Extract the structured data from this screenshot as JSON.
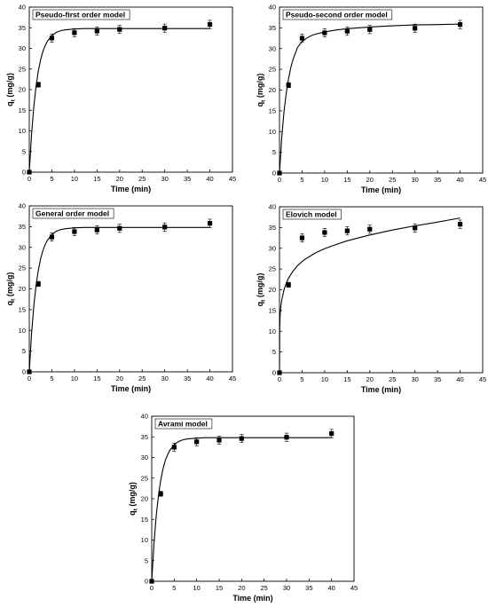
{
  "figure": {
    "chart_data": [
      {
        "type": "scatter",
        "title": "Pseudo-first order model",
        "xlabel": "Time (min)",
        "ylabel": "q",
        "ylabel_sub": "t",
        "ylabel_unit": " (mg/g)",
        "xlim": [
          0,
          45
        ],
        "ylim": [
          0,
          40
        ],
        "xticks": [
          0,
          5,
          10,
          15,
          20,
          25,
          30,
          35,
          40,
          45
        ],
        "yticks": [
          0,
          5,
          10,
          15,
          20,
          25,
          30,
          35,
          40
        ],
        "grid": false,
        "series": [
          {
            "x": [
              0,
              2,
              5,
              10,
              15,
              20,
              30,
              40
            ],
            "y": [
              0,
              21.2,
              32.5,
              33.8,
              34.2,
              34.6,
              34.9,
              35.8
            ],
            "error": [
              0.3,
              0.6,
              1.0,
              1.0,
              1.0,
              1.0,
              1.0,
              1.0
            ]
          }
        ],
        "fit_curve": {
          "x": [
            0,
            0.5,
            1,
            1.5,
            2,
            2.5,
            3,
            3.5,
            4,
            5,
            6,
            7,
            8,
            10,
            12,
            15,
            20,
            25,
            30,
            35,
            40
          ],
          "y": [
            0,
            9.1,
            15.9,
            20.8,
            24.5,
            27.2,
            29.2,
            30.6,
            31.7,
            33.1,
            33.9,
            34.3,
            34.5,
            34.7,
            34.8,
            34.8,
            34.8,
            34.8,
            34.8,
            34.8,
            34.8
          ]
        }
      },
      {
        "type": "scatter",
        "title": "Pseudo-second order model",
        "xlabel": "Time (min)",
        "ylabel": "q",
        "ylabel_sub": "t",
        "ylabel_unit": " (mg/g)",
        "xlim": [
          0,
          45
        ],
        "ylim": [
          0,
          40
        ],
        "xticks": [
          0,
          5,
          10,
          15,
          20,
          25,
          30,
          35,
          40,
          45
        ],
        "yticks": [
          0,
          5,
          10,
          15,
          20,
          25,
          30,
          35,
          40
        ],
        "grid": false,
        "series": [
          {
            "x": [
              0,
              2,
              5,
              10,
              15,
              20,
              30,
              40
            ],
            "y": [
              0,
              21.2,
              32.5,
              33.8,
              34.2,
              34.6,
              34.9,
              35.8
            ],
            "error": [
              0.3,
              0.6,
              1.0,
              1.0,
              1.0,
              1.0,
              1.0,
              1.0
            ]
          }
        ],
        "fit_curve": {
          "x": [
            0,
            0.5,
            1,
            1.5,
            2,
            2.5,
            3,
            4,
            5,
            6,
            7,
            8,
            10,
            12,
            15,
            20,
            25,
            30,
            35,
            40
          ],
          "y": [
            0,
            8.6,
            14.8,
            19.3,
            22.7,
            25.4,
            27.4,
            30.3,
            31.7,
            32.5,
            33.1,
            33.5,
            34.0,
            34.4,
            34.8,
            35.2,
            35.5,
            35.7,
            35.8,
            35.9
          ]
        }
      },
      {
        "type": "scatter",
        "title": "General order model",
        "xlabel": "Time (min)",
        "ylabel": "q",
        "ylabel_sub": "t",
        "ylabel_unit": " (mg/g)",
        "xlim": [
          0,
          45
        ],
        "ylim": [
          0,
          40
        ],
        "xticks": [
          0,
          5,
          10,
          15,
          20,
          25,
          30,
          35,
          40,
          45
        ],
        "yticks": [
          0,
          5,
          10,
          15,
          20,
          25,
          30,
          35,
          40
        ],
        "grid": false,
        "series": [
          {
            "x": [
              0,
              2,
              5,
              10,
              15,
              20,
              30,
              40
            ],
            "y": [
              0,
              21.2,
              32.5,
              33.8,
              34.2,
              34.6,
              34.9,
              35.8
            ],
            "error": [
              0.3,
              0.6,
              1.0,
              1.0,
              1.0,
              1.0,
              1.0,
              1.0
            ]
          }
        ],
        "fit_curve": {
          "x": [
            0,
            0.5,
            1,
            1.5,
            2,
            2.5,
            3,
            3.5,
            4,
            5,
            6,
            7,
            8,
            10,
            12,
            15,
            20,
            25,
            30,
            35,
            40
          ],
          "y": [
            0,
            9.1,
            15.9,
            20.8,
            24.5,
            27.2,
            29.2,
            30.6,
            31.7,
            33.1,
            33.9,
            34.3,
            34.5,
            34.7,
            34.8,
            34.8,
            34.8,
            34.8,
            34.8,
            34.8,
            34.8
          ]
        }
      },
      {
        "type": "scatter",
        "title": "Elovich model",
        "xlabel": "Time (min)",
        "ylabel": "q",
        "ylabel_sub": "t",
        "ylabel_unit": " (mg/g)",
        "xlim": [
          0,
          45
        ],
        "ylim": [
          0,
          40
        ],
        "xticks": [
          0,
          5,
          10,
          15,
          20,
          25,
          30,
          35,
          40,
          45
        ],
        "yticks": [
          0,
          5,
          10,
          15,
          20,
          25,
          30,
          35,
          40
        ],
        "grid": false,
        "series": [
          {
            "x": [
              0,
              2,
              5,
              10,
              15,
              20,
              30,
              40
            ],
            "y": [
              0,
              21.2,
              32.5,
              33.8,
              34.2,
              34.6,
              34.9,
              35.8
            ],
            "error": [
              0.3,
              0.6,
              1.0,
              1.0,
              1.0,
              1.0,
              1.0,
              1.0
            ]
          }
        ],
        "fit_curve": {
          "x": [
            0,
            0.05,
            0.15,
            0.3,
            0.5,
            1,
            1.5,
            2,
            3,
            4,
            5,
            6,
            8,
            10,
            12,
            15,
            20,
            25,
            30,
            35,
            40
          ],
          "y": [
            0,
            10.8,
            14.0,
            16.0,
            17.5,
            20.0,
            21.6,
            22.8,
            24.5,
            25.8,
            26.8,
            27.6,
            28.9,
            29.9,
            30.7,
            31.8,
            33.2,
            34.4,
            35.4,
            36.3,
            37.3
          ]
        }
      },
      {
        "type": "scatter",
        "title": "Avrami model",
        "xlabel": "Time (min)",
        "ylabel": "q",
        "ylabel_sub": "t",
        "ylabel_unit": " (mg/g)",
        "xlim": [
          0,
          45
        ],
        "ylim": [
          0,
          40
        ],
        "xticks": [
          0,
          5,
          10,
          15,
          20,
          25,
          30,
          35,
          40,
          45
        ],
        "yticks": [
          0,
          5,
          10,
          15,
          20,
          25,
          30,
          35,
          40
        ],
        "grid": false,
        "series": [
          {
            "x": [
              0,
              2,
              5,
              10,
              15,
              20,
              30,
              40
            ],
            "y": [
              0,
              21.2,
              32.5,
              33.8,
              34.2,
              34.6,
              34.9,
              35.8
            ],
            "error": [
              0.3,
              0.6,
              1.0,
              1.0,
              1.0,
              1.0,
              1.0,
              1.0
            ]
          }
        ],
        "fit_curve": {
          "x": [
            0,
            0.5,
            1,
            1.5,
            2,
            2.5,
            3,
            3.5,
            4,
            5,
            6,
            7,
            8,
            10,
            12,
            15,
            20,
            25,
            30,
            35,
            40
          ],
          "y": [
            0,
            9.1,
            15.9,
            20.8,
            24.5,
            27.2,
            29.2,
            30.6,
            31.7,
            33.1,
            33.9,
            34.3,
            34.5,
            34.7,
            34.8,
            34.8,
            34.8,
            34.8,
            34.8,
            34.8,
            34.8
          ]
        }
      }
    ]
  }
}
